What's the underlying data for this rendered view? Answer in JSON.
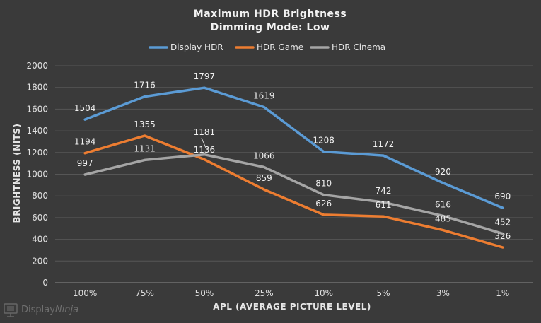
{
  "chart_data": {
    "type": "line",
    "title": "Maximum  HDR Brightness",
    "subtitle": "Dimming  Mode: Low",
    "xlabel": "APL (AVERAGE PICTURE LEVEL)",
    "ylabel": "BRIGHTNESS (NITS)",
    "categories": [
      "100%",
      "75%",
      "50%",
      "25%",
      "10%",
      "5%",
      "3%",
      "1%"
    ],
    "ylim": [
      0,
      2000
    ],
    "yticks": [
      0,
      200,
      400,
      600,
      800,
      1000,
      1200,
      1400,
      1600,
      1800,
      2000
    ],
    "grid": true,
    "legend_position": "top",
    "series": [
      {
        "name": "Display HDR",
        "color": "#5b9bd5",
        "values": [
          1504,
          1716,
          1797,
          1619,
          1208,
          1172,
          920,
          690
        ]
      },
      {
        "name": "HDR Game",
        "color": "#ed7d31",
        "values": [
          1194,
          1355,
          1136,
          859,
          626,
          611,
          485,
          326
        ]
      },
      {
        "name": "HDR Cinema",
        "color": "#a5a5a5",
        "values": [
          997,
          1131,
          1181,
          1066,
          810,
          742,
          616,
          452
        ]
      }
    ]
  },
  "watermark": {
    "brand_part1": "Display",
    "brand_part2": "Ninja",
    "icon": "monitor-logo-icon"
  }
}
